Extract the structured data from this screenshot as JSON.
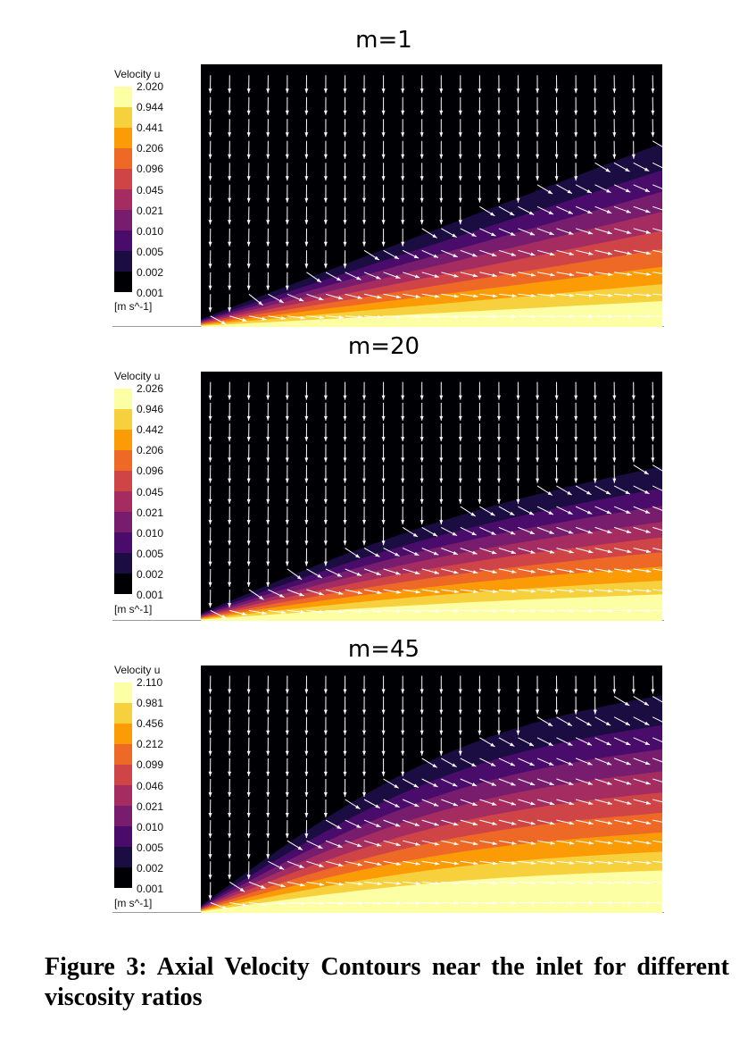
{
  "figure": {
    "caption": "Figure 3: Axial Velocity Contours near the inlet for different viscosity ratios"
  },
  "colormap": [
    "#000004",
    "#1b0c41",
    "#4a0c6b",
    "#781c6d",
    "#a52c60",
    "#cf4446",
    "#ed6925",
    "#fb9b06",
    "#f7d13d",
    "#fcffa4"
  ],
  "panels": [
    {
      "title": "m=1",
      "legend_title": "Velocity u",
      "unit": "[m s^-1]",
      "ticks": [
        "2.020",
        "0.944",
        "0.441",
        "0.206",
        "0.096",
        "0.045",
        "0.021",
        "0.010",
        "0.005",
        "0.002",
        "0.001"
      ],
      "viscosity_ratio": 1
    },
    {
      "title": "m=20",
      "legend_title": "Velocity u",
      "unit": "[m s^-1]",
      "ticks": [
        "2.026",
        "0.946",
        "0.442",
        "0.206",
        "0.096",
        "0.045",
        "0.021",
        "0.010",
        "0.005",
        "0.002",
        "0.001"
      ],
      "viscosity_ratio": 20
    },
    {
      "title": "m=45",
      "legend_title": "Velocity u",
      "unit": "[m s^-1]",
      "ticks": [
        "2.110",
        "0.981",
        "0.456",
        "0.212",
        "0.099",
        "0.046",
        "0.021",
        "0.010",
        "0.005",
        "0.002",
        "0.001"
      ],
      "viscosity_ratio": 45
    }
  ]
}
